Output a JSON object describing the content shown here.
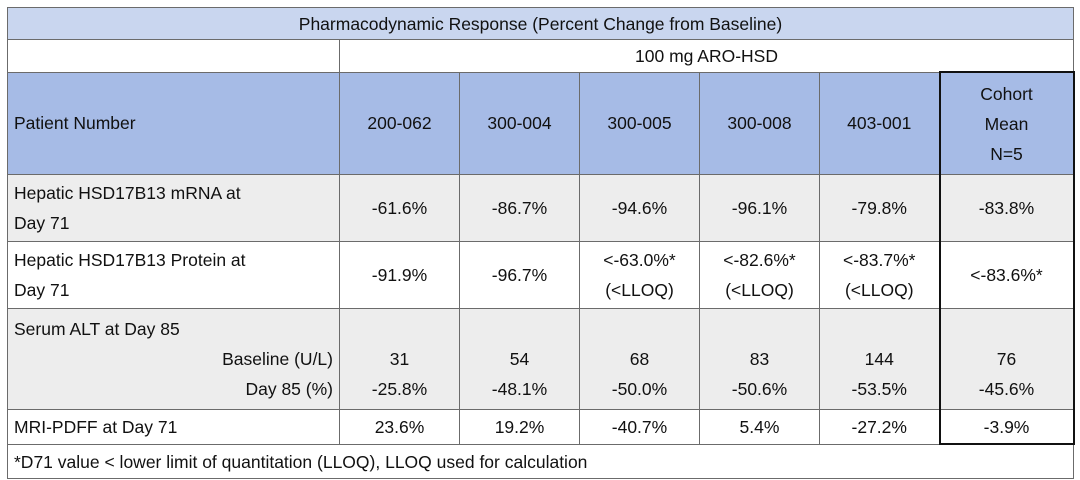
{
  "table": {
    "title": "Pharmacodynamic Response (Percent Change from Baseline)",
    "dose": "100 mg ARO-HSD",
    "header": {
      "label": "Patient Number",
      "patients": [
        "200-062",
        "300-004",
        "300-005",
        "300-008",
        "403-001"
      ],
      "cohort_mean": [
        "Cohort",
        "Mean",
        "N=5"
      ]
    },
    "rows": {
      "mrna": {
        "label_line1": "Hepatic HSD17B13 mRNA at",
        "label_line2": "Day 71",
        "values": [
          "-61.6%",
          "-86.7%",
          "-94.6%",
          "-96.1%",
          "-79.8%"
        ],
        "mean": "-83.8%"
      },
      "protein": {
        "label_line1": "Hepatic HSD17B13 Protein at",
        "label_line2": "Day 71",
        "values": [
          "-91.9%",
          "-96.7%"
        ],
        "values_lloq": [
          {
            "value": "<-63.0%*",
            "note": "(<LLOQ)"
          },
          {
            "value": "<-82.6%*",
            "note": "(<LLOQ)"
          },
          {
            "value": "<-83.7%*",
            "note": "(<LLOQ)"
          }
        ],
        "mean": "<-83.6%*"
      },
      "alt": {
        "label": "Serum ALT at Day 85",
        "sub1": "Baseline (U/L)",
        "sub2": "Day 85 (%)",
        "baseline": [
          "31",
          "54",
          "68",
          "83",
          "144"
        ],
        "day85": [
          "-25.8%",
          "-48.1%",
          "-50.0%",
          "-50.6%",
          "-53.5%"
        ],
        "mean_baseline": "76",
        "mean_day85": "-45.6%"
      },
      "mri": {
        "label": "MRI-PDFF at Day 71",
        "values": [
          "23.6%",
          "19.2%",
          "-40.7%",
          "5.4%",
          "-27.2%"
        ],
        "mean": "-3.9%"
      }
    },
    "footnote": "*D71 value < lower limit of quantitation (LLOQ), LLOQ used for calculation",
    "colors": {
      "title_bg": "#c9d6ef",
      "header_bg": "#a6bbe6",
      "shaded_row_bg": "#ededed",
      "grid": "#6b6b6b",
      "cohort_border": "#111111"
    }
  }
}
